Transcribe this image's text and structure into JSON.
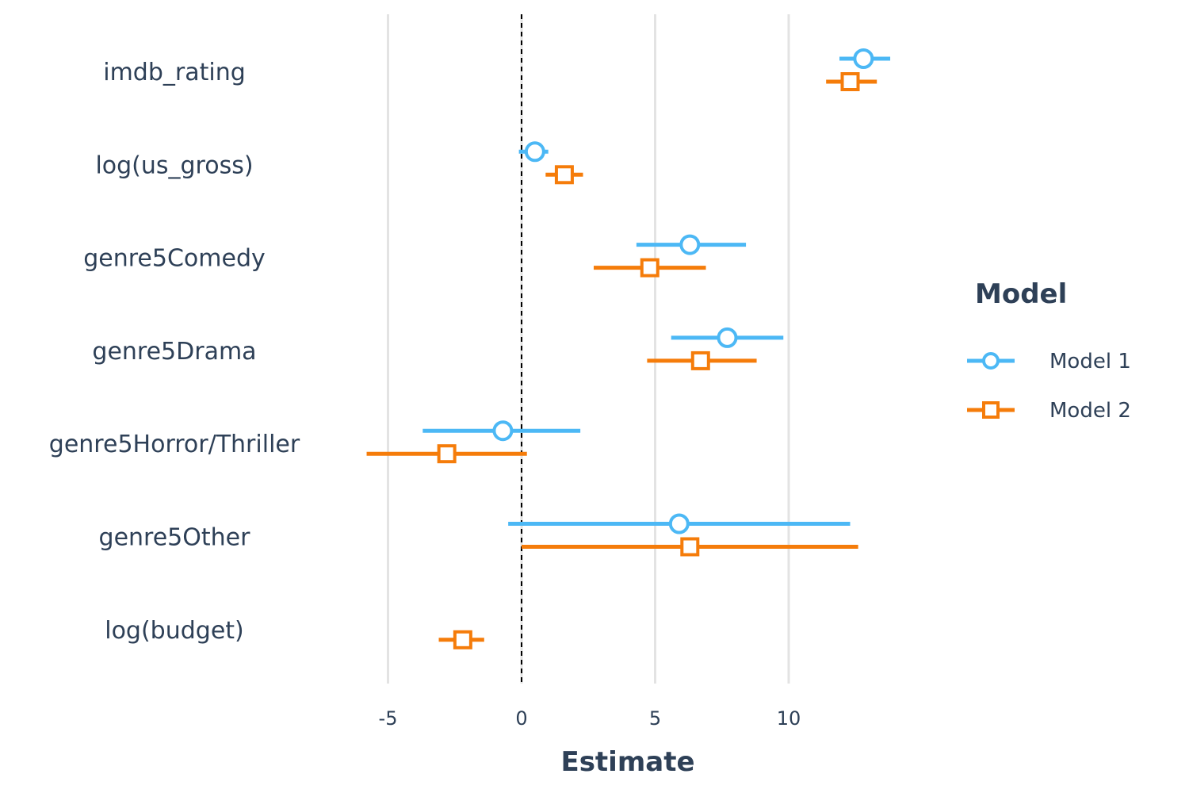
{
  "chart_data": {
    "type": "scatter",
    "subtype": "coefficient-plot",
    "xlabel": "Estimate",
    "xlim": [
      -7.0,
      14.0
    ],
    "x_ticks": [
      -5,
      0,
      5,
      10
    ],
    "x_tick_labels": [
      "-5",
      "0",
      "5",
      "10"
    ],
    "reference_line_x": 0,
    "grid": "vertical major only",
    "terms": [
      "imdb_rating",
      "log(us_gross)",
      "genre5Comedy",
      "genre5Drama",
      "genre5Horror/Thriller",
      "genre5Other",
      "log(budget)"
    ],
    "legend": {
      "title": "Model",
      "position": "right"
    },
    "series": [
      {
        "name": "Model 1",
        "color": "#4cb8f5",
        "marker": "circle",
        "points": [
          {
            "term": "imdb_rating",
            "estimate": 12.8,
            "low": 11.9,
            "high": 13.8
          },
          {
            "term": "log(us_gross)",
            "estimate": 0.5,
            "low": -0.1,
            "high": 1.0
          },
          {
            "term": "genre5Comedy",
            "estimate": 6.3,
            "low": 4.3,
            "high": 8.4
          },
          {
            "term": "genre5Drama",
            "estimate": 7.7,
            "low": 5.6,
            "high": 9.8
          },
          {
            "term": "genre5Horror/Thriller",
            "estimate": -0.7,
            "low": -3.7,
            "high": 2.2
          },
          {
            "term": "genre5Other",
            "estimate": 5.9,
            "low": -0.5,
            "high": 12.3
          }
        ]
      },
      {
        "name": "Model 2",
        "color": "#f57c0a",
        "marker": "square",
        "points": [
          {
            "term": "imdb_rating",
            "estimate": 12.3,
            "low": 11.4,
            "high": 13.3
          },
          {
            "term": "log(us_gross)",
            "estimate": 1.6,
            "low": 0.9,
            "high": 2.3
          },
          {
            "term": "genre5Comedy",
            "estimate": 4.8,
            "low": 2.7,
            "high": 6.9
          },
          {
            "term": "genre5Drama",
            "estimate": 6.7,
            "low": 4.7,
            "high": 8.8
          },
          {
            "term": "genre5Horror/Thriller",
            "estimate": -2.8,
            "low": -5.8,
            "high": 0.2
          },
          {
            "term": "genre5Other",
            "estimate": 6.3,
            "low": 0.0,
            "high": 12.6
          },
          {
            "term": "log(budget)",
            "estimate": -2.2,
            "low": -3.1,
            "high": -1.4
          }
        ]
      }
    ]
  }
}
